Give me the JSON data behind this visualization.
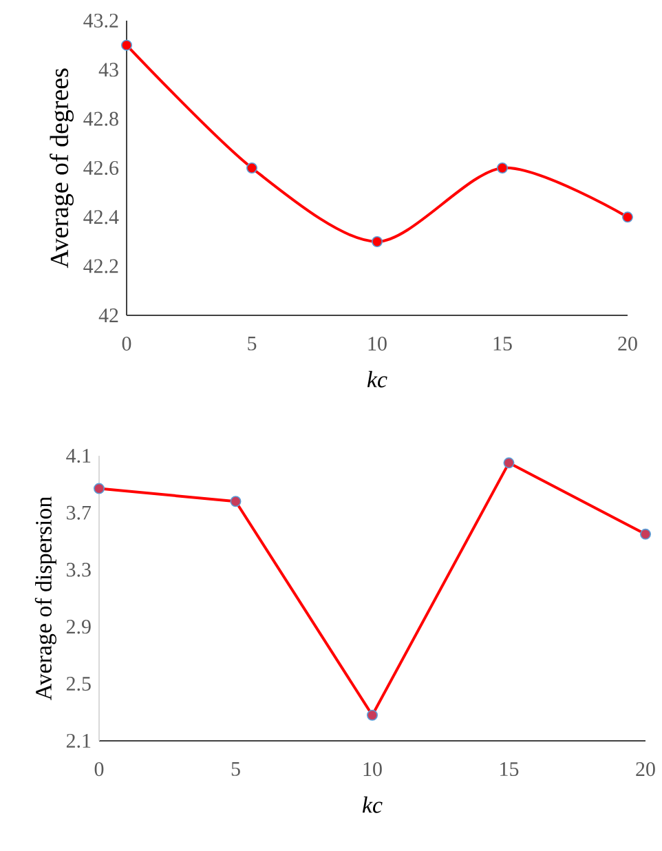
{
  "chart_data": [
    {
      "type": "line",
      "xlabel": "*kc*",
      "ylabel": "Average of degrees",
      "x": [
        0,
        5,
        10,
        15,
        20
      ],
      "xlim": [
        0,
        20
      ],
      "xticks": [
        0,
        5,
        10,
        15,
        20
      ],
      "ylim": [
        42,
        43.2
      ],
      "yticks": [
        42,
        42.2,
        42.4,
        42.6,
        42.8,
        43,
        43.2
      ],
      "marker": "circle",
      "line_style": "solid",
      "series": [
        {
          "color": "#ff0000",
          "values": [
            43.1,
            42.6,
            42.3,
            42.6,
            42.4
          ]
        }
      ]
    },
    {
      "type": "line",
      "xlabel": "*kc*",
      "ylabel": "Average of dispersion",
      "x": [
        0,
        5,
        10,
        15,
        20
      ],
      "xlim": [
        0,
        20
      ],
      "xticks": [
        0,
        5,
        10,
        15,
        20
      ],
      "ylim": [
        2.1,
        4.1
      ],
      "yticks": [
        2.1,
        2.5,
        2.9,
        3.3,
        3.7,
        4.1
      ],
      "marker": "circle",
      "line_style": "solid",
      "series": [
        {
          "color": "#ff0000",
          "values": [
            3.87,
            3.78,
            2.28,
            4.05,
            3.55
          ]
        }
      ]
    }
  ]
}
